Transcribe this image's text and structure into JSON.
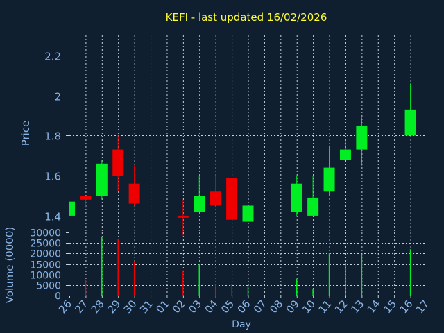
{
  "chart_data": [
    {
      "type": "candlestick",
      "title": "KEFI - last updated 16/02/2026",
      "ylabel": "Price",
      "ylim": [
        1.32,
        2.3
      ],
      "yticks": [
        1.4,
        1.6,
        1.8,
        2.0,
        2.2
      ],
      "ytick_labels": [
        "1.4",
        "1.6",
        "1.8",
        "2",
        "2.2"
      ],
      "grid": true,
      "candles": [
        {
          "day": "26",
          "open": 1.4,
          "high": 1.47,
          "low": 1.4,
          "close": 1.47,
          "dir": "up"
        },
        {
          "day": "27",
          "open": 1.5,
          "high": 1.5,
          "low": 1.44,
          "close": 1.48,
          "dir": "down"
        },
        {
          "day": "28",
          "open": 1.5,
          "high": 1.68,
          "low": 1.48,
          "close": 1.66,
          "dir": "up"
        },
        {
          "day": "29",
          "open": 1.73,
          "high": 1.8,
          "low": 1.52,
          "close": 1.6,
          "dir": "down"
        },
        {
          "day": "30",
          "open": 1.56,
          "high": 1.65,
          "low": 1.45,
          "close": 1.46,
          "dir": "down"
        },
        {
          "day": "02",
          "open": 1.4,
          "high": 1.48,
          "low": 1.3,
          "close": 1.39,
          "dir": "down"
        },
        {
          "day": "03",
          "open": 1.42,
          "high": 1.6,
          "low": 1.42,
          "close": 1.5,
          "dir": "up"
        },
        {
          "day": "04",
          "open": 1.52,
          "high": 1.6,
          "low": 1.45,
          "close": 1.45,
          "dir": "down"
        },
        {
          "day": "05",
          "open": 1.59,
          "high": 1.59,
          "low": 1.38,
          "close": 1.38,
          "dir": "down"
        },
        {
          "day": "06",
          "open": 1.37,
          "high": 1.49,
          "low": 1.37,
          "close": 1.45,
          "dir": "up"
        },
        {
          "day": "09",
          "open": 1.42,
          "high": 1.6,
          "low": 1.4,
          "close": 1.56,
          "dir": "up"
        },
        {
          "day": "10",
          "open": 1.4,
          "high": 1.6,
          "low": 1.4,
          "close": 1.49,
          "dir": "up"
        },
        {
          "day": "11",
          "open": 1.52,
          "high": 1.75,
          "low": 1.5,
          "close": 1.64,
          "dir": "up"
        },
        {
          "day": "12",
          "open": 1.68,
          "high": 1.78,
          "low": 1.68,
          "close": 1.73,
          "dir": "up"
        },
        {
          "day": "13",
          "open": 1.73,
          "high": 1.89,
          "low": 1.65,
          "close": 1.85,
          "dir": "up"
        },
        {
          "day": "16",
          "open": 1.8,
          "high": 2.06,
          "low": 1.8,
          "close": 1.93,
          "dir": "up"
        }
      ]
    },
    {
      "type": "bar",
      "ylabel": "Volume (0000)",
      "xlabel": "Day",
      "ylim": [
        0,
        30000
      ],
      "yticks": [
        0,
        5000,
        10000,
        15000,
        20000,
        25000,
        30000
      ],
      "categories": [
        "26",
        "27",
        "28",
        "29",
        "30",
        "31",
        "01",
        "02",
        "03",
        "04",
        "05",
        "06",
        "07",
        "08",
        "09",
        "10",
        "11",
        "12",
        "13",
        "14",
        "15",
        "16",
        "17"
      ],
      "volumes": [
        {
          "day": "27",
          "value": 7500,
          "dir": "down"
        },
        {
          "day": "28",
          "value": 28000,
          "dir": "up"
        },
        {
          "day": "29",
          "value": 27000,
          "dir": "down"
        },
        {
          "day": "30",
          "value": 16000,
          "dir": "down"
        },
        {
          "day": "02",
          "value": 12000,
          "dir": "down"
        },
        {
          "day": "03",
          "value": 15000,
          "dir": "up"
        },
        {
          "day": "04",
          "value": 5000,
          "dir": "down"
        },
        {
          "day": "05",
          "value": 5500,
          "dir": "down"
        },
        {
          "day": "06",
          "value": 4500,
          "dir": "up"
        },
        {
          "day": "09",
          "value": 8000,
          "dir": "up"
        },
        {
          "day": "10",
          "value": 3000,
          "dir": "up"
        },
        {
          "day": "11",
          "value": 20000,
          "dir": "up"
        },
        {
          "day": "12",
          "value": 15500,
          "dir": "up"
        },
        {
          "day": "13",
          "value": 19500,
          "dir": "up"
        },
        {
          "day": "16",
          "value": 22000,
          "dir": "up"
        }
      ]
    }
  ],
  "colors": {
    "background": "#0f1f2f",
    "up": "#00ee22",
    "down": "#ee0000",
    "title": "#ffff33",
    "axis_text": "#8ab4e6",
    "grid": "#c8d2dc",
    "frame": "#c8d2dc"
  }
}
